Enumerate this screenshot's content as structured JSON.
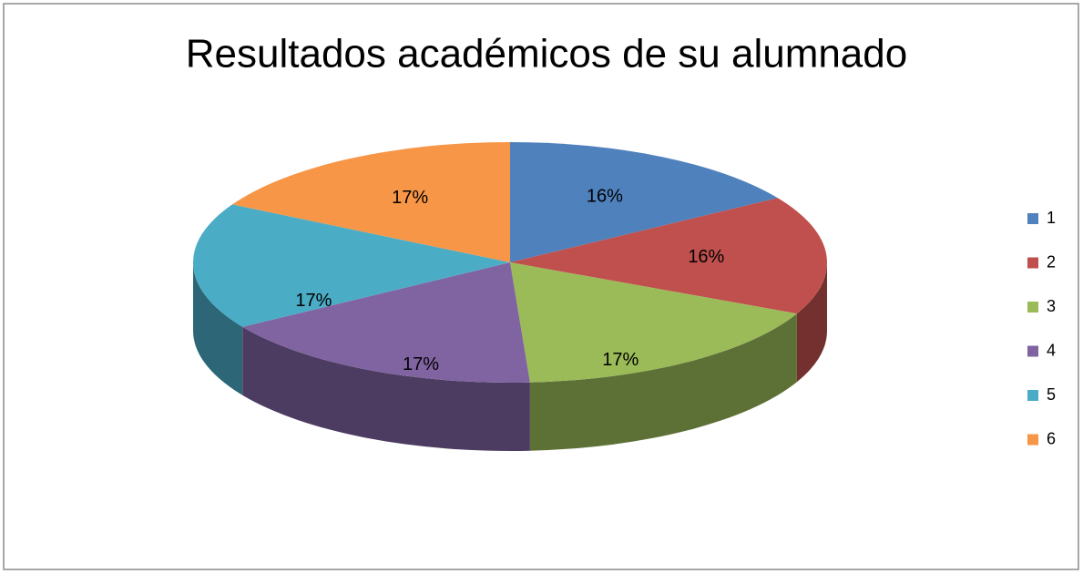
{
  "chart_data": {
    "type": "pie3d",
    "title": "Resultados académicos de su alumnado",
    "categories": [
      "1",
      "2",
      "3",
      "4",
      "5",
      "6"
    ],
    "values": [
      16,
      16,
      17,
      17,
      17,
      17
    ],
    "value_labels": [
      "16%",
      "16%",
      "17%",
      "17%",
      "17%",
      "17%"
    ],
    "colors": [
      "#4f81bd",
      "#c0504d",
      "#9bbb59",
      "#8064a2",
      "#4bacc6",
      "#f79646"
    ],
    "legend": "right"
  }
}
